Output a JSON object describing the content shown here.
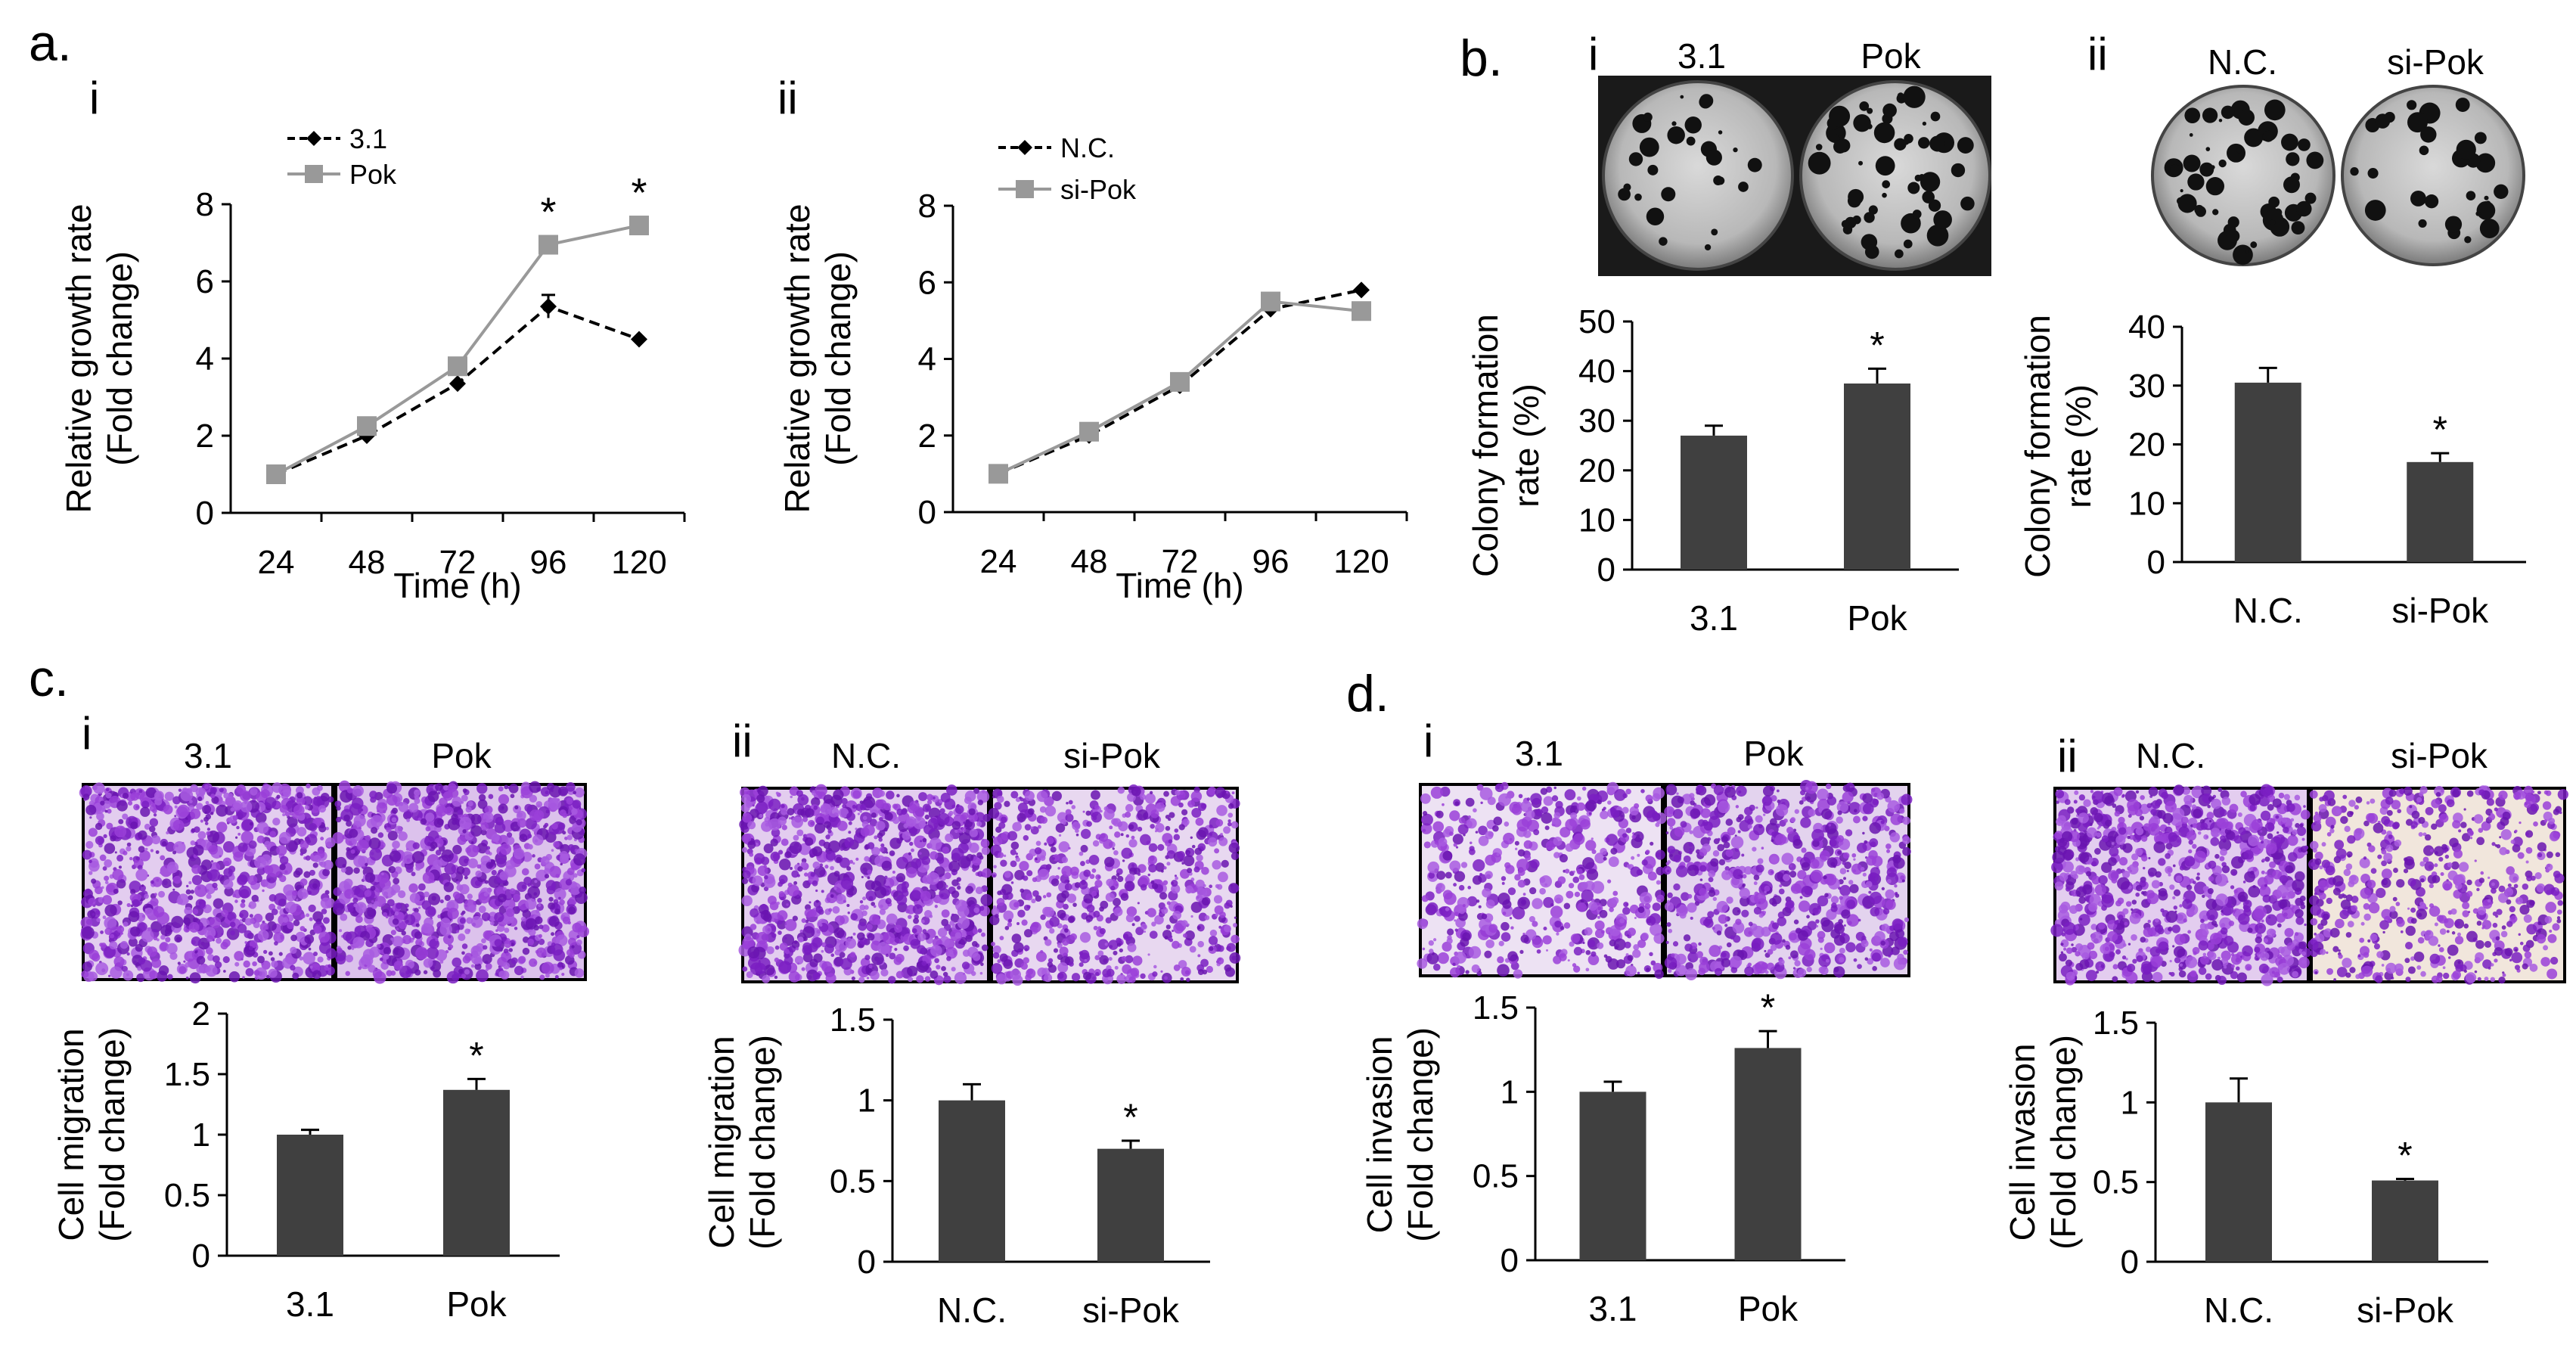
{
  "panels": {
    "a": "a.",
    "b": "b.",
    "c": "c.",
    "d": "d.",
    "ai": "i",
    "aii": "ii",
    "bi": "i",
    "bii": "ii",
    "ci": "i",
    "cii": "ii",
    "di": "i",
    "dii": "ii"
  },
  "images": {
    "b_i": {
      "left": "3.1",
      "right": "Pok"
    },
    "b_ii": {
      "left": "N.C.",
      "right": "si-Pok"
    },
    "c_i": {
      "left": "3.1",
      "right": "Pok"
    },
    "c_ii": {
      "left": "N.C.",
      "right": "si-Pok"
    },
    "d_i": {
      "left": "3.1",
      "right": "Pok"
    },
    "d_ii": {
      "left": "N.C.",
      "right": "si-Pok"
    }
  },
  "colors": {
    "dark": "#404040",
    "gray": "#999999",
    "purple": "#8a2ecf",
    "dish_bg": "#000000"
  },
  "chart_data": [
    {
      "id": "a_i",
      "type": "line",
      "xlabel": "Time (h)",
      "ylabel": [
        "Relative growth rate",
        "(Fold change)"
      ],
      "x": [
        24,
        48,
        72,
        96,
        120
      ],
      "x_tick_labels": [
        "24",
        "48",
        "72",
        "96",
        "120"
      ],
      "ylim": [
        0,
        8
      ],
      "yticks": [
        0,
        2,
        4,
        6,
        8
      ],
      "y_tick_labels": [
        "0",
        "2",
        "4",
        "6",
        "8"
      ],
      "series": [
        {
          "name": "3.1",
          "values": [
            1.0,
            2.0,
            3.35,
            5.35,
            4.5
          ],
          "errors": [
            0,
            0,
            0,
            0.3,
            0
          ],
          "style": "dashed",
          "marker": "diamond",
          "color": "#000000"
        },
        {
          "name": "Pok",
          "values": [
            1.0,
            2.25,
            3.8,
            6.95,
            7.45
          ],
          "errors": [
            0,
            0,
            0,
            0,
            0
          ],
          "style": "solid",
          "marker": "square",
          "color": "#999999"
        }
      ],
      "annotations": [
        {
          "x": 96,
          "text": "*"
        },
        {
          "x": 120,
          "text": "*"
        }
      ]
    },
    {
      "id": "a_ii",
      "type": "line",
      "xlabel": "Time (h)",
      "ylabel": [
        "Relative growth rate",
        "(Fold change)"
      ],
      "x": [
        24,
        48,
        72,
        96,
        120
      ],
      "x_tick_labels": [
        "24",
        "48",
        "72",
        "96",
        "120"
      ],
      "ylim": [
        0,
        8
      ],
      "yticks": [
        0,
        2,
        4,
        6,
        8
      ],
      "y_tick_labels": [
        "0",
        "2",
        "4",
        "6",
        "8"
      ],
      "series": [
        {
          "name": "N.C.",
          "values": [
            1.0,
            2.0,
            3.3,
            5.3,
            5.8
          ],
          "errors": [
            0,
            0,
            0,
            0,
            0
          ],
          "style": "dashed",
          "marker": "diamond",
          "color": "#000000"
        },
        {
          "name": "si-Pok",
          "values": [
            1.0,
            2.1,
            3.4,
            5.5,
            5.25
          ],
          "errors": [
            0,
            0,
            0,
            0,
            0
          ],
          "style": "solid",
          "marker": "square",
          "color": "#999999"
        }
      ],
      "annotations": []
    },
    {
      "id": "b_i",
      "type": "bar",
      "ylabel": [
        "Colony formation",
        "rate (%)"
      ],
      "categories": [
        "3.1",
        "Pok"
      ],
      "values": [
        27,
        37.5
      ],
      "errors": [
        2,
        3
      ],
      "ylim": [
        0,
        50
      ],
      "yticks": [
        0,
        10,
        20,
        30,
        40,
        50
      ],
      "y_tick_labels": [
        "0",
        "10",
        "20",
        "30",
        "40",
        "50"
      ],
      "annotations": [
        {
          "category": "Pok",
          "text": "*"
        }
      ]
    },
    {
      "id": "b_ii",
      "type": "bar",
      "ylabel": [
        "Colony formation",
        "rate (%)"
      ],
      "categories": [
        "N.C.",
        "si-Pok"
      ],
      "values": [
        30.5,
        17
      ],
      "errors": [
        2.5,
        1.5
      ],
      "ylim": [
        0,
        40
      ],
      "yticks": [
        0,
        10,
        20,
        30,
        40
      ],
      "y_tick_labels": [
        "0",
        "10",
        "20",
        "30",
        "40"
      ],
      "annotations": [
        {
          "category": "si-Pok",
          "text": "*"
        }
      ]
    },
    {
      "id": "c_i",
      "type": "bar",
      "ylabel": [
        "Cell migration",
        "(Fold change)"
      ],
      "categories": [
        "3.1",
        "Pok"
      ],
      "values": [
        1.0,
        1.37
      ],
      "errors": [
        0.04,
        0.09
      ],
      "ylim": [
        0,
        2
      ],
      "yticks": [
        0,
        0.5,
        1,
        1.5,
        2
      ],
      "y_tick_labels": [
        "0",
        "0.5",
        "1",
        "1.5",
        "2"
      ],
      "annotations": [
        {
          "category": "Pok",
          "text": "*"
        }
      ]
    },
    {
      "id": "c_ii",
      "type": "bar",
      "ylabel": [
        "Cell migration",
        "(Fold change)"
      ],
      "categories": [
        "N.C.",
        "si-Pok"
      ],
      "values": [
        1.0,
        0.7
      ],
      "errors": [
        0.1,
        0.05
      ],
      "ylim": [
        0,
        1.5
      ],
      "yticks": [
        0,
        0.5,
        1,
        1.5
      ],
      "y_tick_labels": [
        "0",
        "0.5",
        "1",
        "1.5"
      ],
      "annotations": [
        {
          "category": "si-Pok",
          "text": "*"
        }
      ]
    },
    {
      "id": "d_i",
      "type": "bar",
      "ylabel": [
        "Cell invasion",
        "(Fold change)"
      ],
      "categories": [
        "3.1",
        "Pok"
      ],
      "values": [
        1.0,
        1.26
      ],
      "errors": [
        0.06,
        0.1
      ],
      "ylim": [
        0,
        1.5
      ],
      "yticks": [
        0,
        0.5,
        1,
        1.5
      ],
      "y_tick_labels": [
        "0",
        "0.5",
        "1",
        "1.5"
      ],
      "annotations": [
        {
          "category": "Pok",
          "text": "*"
        }
      ]
    },
    {
      "id": "d_ii",
      "type": "bar",
      "ylabel": [
        "Cell invasion",
        "(Fold change)"
      ],
      "categories": [
        "N.C.",
        "si-Pok"
      ],
      "values": [
        1.0,
        0.51
      ],
      "errors": [
        0.15,
        0.01
      ],
      "ylim": [
        0,
        1.5
      ],
      "yticks": [
        0,
        0.5,
        1,
        1.5
      ],
      "y_tick_labels": [
        "0",
        "0.5",
        "1",
        "1.5"
      ],
      "annotations": [
        {
          "category": "si-Pok",
          "text": "*"
        }
      ]
    }
  ]
}
